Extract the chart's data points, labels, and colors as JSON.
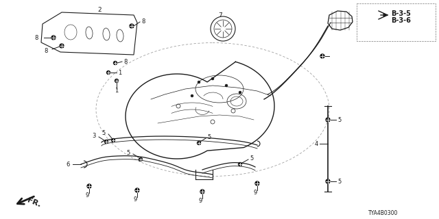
{
  "bg_color": "#ffffff",
  "part_number": "TYA4B0300",
  "fig_width": 6.4,
  "fig_height": 3.2,
  "dpi": 100,
  "color": "#1a1a1a"
}
